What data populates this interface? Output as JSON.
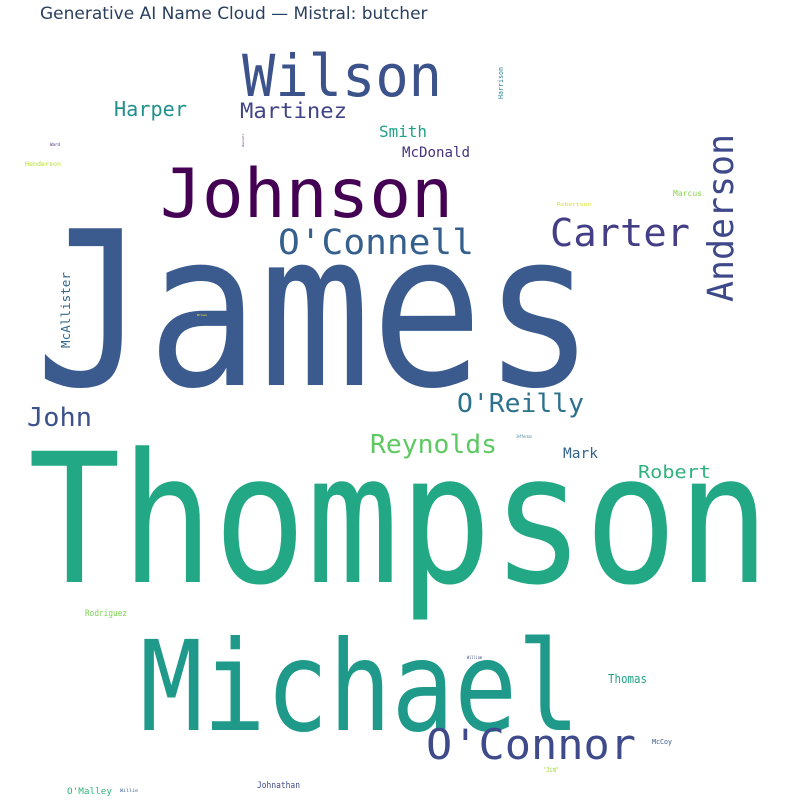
{
  "title": "Generative AI Name Cloud — Mistral: butcher",
  "words": [
    {
      "text": "James",
      "color": "#3b5b8f",
      "rotate": false
    },
    {
      "text": "Thompson",
      "color": "#22a884",
      "rotate": false
    },
    {
      "text": "Michael",
      "color": "#1f9a8a",
      "rotate": false
    },
    {
      "text": "Johnson",
      "color": "#440154",
      "rotate": false
    },
    {
      "text": "Wilson",
      "color": "#3b528b",
      "rotate": false
    },
    {
      "text": "O'Connor",
      "color": "#3e4a89",
      "rotate": false
    },
    {
      "text": "O'Connell",
      "color": "#355f8d",
      "rotate": false
    },
    {
      "text": "Carter",
      "color": "#433e85",
      "rotate": false
    },
    {
      "text": "Anderson",
      "color": "#3e4989",
      "rotate": true
    },
    {
      "text": "O'Reilly",
      "color": "#2c728e",
      "rotate": false
    },
    {
      "text": "Reynolds",
      "color": "#5ec962",
      "rotate": false
    },
    {
      "text": "John",
      "color": "#3b528b",
      "rotate": false
    },
    {
      "text": "Harper",
      "color": "#21918c",
      "rotate": false
    },
    {
      "text": "Martinez",
      "color": "#414487",
      "rotate": false
    },
    {
      "text": "Robert",
      "color": "#2db27d",
      "rotate": false
    },
    {
      "text": "Smith",
      "color": "#1fa187",
      "rotate": false
    },
    {
      "text": "McDonald",
      "color": "#46337e",
      "rotate": false
    },
    {
      "text": "McAllister",
      "color": "#31688e",
      "rotate": true
    },
    {
      "text": "Mark",
      "color": "#33638d",
      "rotate": false
    },
    {
      "text": "Thomas",
      "color": "#20a486",
      "rotate": false
    },
    {
      "text": "Rodriguez",
      "color": "#7ad151",
      "rotate": false
    },
    {
      "text": "Johnathan",
      "color": "#3e4a89",
      "rotate": false
    },
    {
      "text": "O'Malley",
      "color": "#2fb47c",
      "rotate": false
    },
    {
      "text": "Harrison",
      "color": "#26818e",
      "rotate": true
    },
    {
      "text": "Marcus",
      "color": "#86d549",
      "rotate": false
    },
    {
      "text": "McCoy",
      "color": "#39568c",
      "rotate": false
    },
    {
      "text": "Henderson",
      "color": "#b5de2b",
      "rotate": false
    },
    {
      "text": "Robertson",
      "color": "#d8e219",
      "rotate": false
    },
    {
      "text": "\"Jim\"",
      "color": "#a0da39",
      "rotate": false
    },
    {
      "text": "Jefferson",
      "color": "#2a788e",
      "rotate": false
    },
    {
      "text": "William",
      "color": "#3d4d8a",
      "rotate": false
    },
    {
      "text": "Willie",
      "color": "#365c8d",
      "rotate": false
    },
    {
      "text": "Ward",
      "color": "#472d7b",
      "rotate": false
    },
    {
      "text": "Russell",
      "color": "#481f70",
      "rotate": true
    },
    {
      "text": "Brown",
      "color": "#fde725",
      "rotate": false
    }
  ]
}
